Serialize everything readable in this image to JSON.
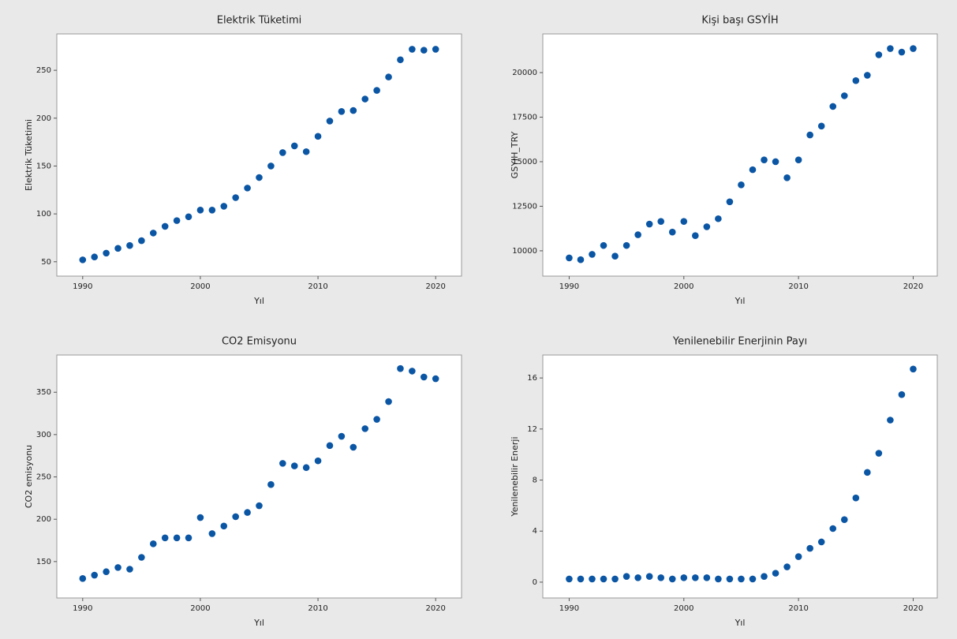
{
  "chart_data": [
    {
      "type": "scatter",
      "title": "Elektrik Tüketimi",
      "x_label": "Yıl",
      "y_label": "Elektrik Tüketimi",
      "color": "#0b56a4",
      "x": [
        1990,
        1991,
        1992,
        1993,
        1994,
        1995,
        1996,
        1997,
        1998,
        1999,
        2000,
        2001,
        2002,
        2003,
        2004,
        2005,
        2006,
        2007,
        2008,
        2009,
        2010,
        2011,
        2012,
        2013,
        2014,
        2015,
        2016,
        2017,
        2018,
        2019,
        2020
      ],
      "values": [
        52,
        55,
        59,
        64,
        67,
        72,
        80,
        87,
        93,
        97,
        104,
        104,
        108,
        117,
        127,
        138,
        150,
        164,
        171,
        165,
        181,
        197,
        207,
        208,
        220,
        229,
        243,
        261,
        272,
        271,
        272
      ],
      "xlim": [
        1987.8,
        2022.2
      ],
      "xticks": [
        1990,
        2000,
        2010,
        2020
      ],
      "ylim": [
        35,
        288
      ],
      "yticks": [
        50,
        100,
        150,
        200,
        250
      ]
    },
    {
      "type": "scatter",
      "title": "Kişi başı GSYİH",
      "x_label": "Yıl",
      "y_label": "GSYIH_TRY",
      "color": "#0b56a4",
      "x": [
        1990,
        1991,
        1992,
        1993,
        1994,
        1995,
        1996,
        1997,
        1998,
        1999,
        2000,
        2001,
        2002,
        2003,
        2004,
        2005,
        2006,
        2007,
        2008,
        2009,
        2010,
        2011,
        2012,
        2013,
        2014,
        2015,
        2016,
        2017,
        2018,
        2019,
        2020
      ],
      "values": [
        9600,
        9500,
        9800,
        10300,
        9700,
        10300,
        10900,
        11500,
        11650,
        11050,
        11650,
        10850,
        11350,
        11800,
        12750,
        13700,
        14550,
        15100,
        15000,
        14100,
        15100,
        16500,
        17000,
        18100,
        18700,
        19550,
        19850,
        21000,
        21350,
        21150,
        21350
      ],
      "xlim": [
        1987.7,
        2022.1
      ],
      "xticks": [
        1990,
        2000,
        2010,
        2020
      ],
      "ylim": [
        8580,
        22170
      ],
      "yticks": [
        10000,
        12500,
        15000,
        17500,
        20000
      ]
    },
    {
      "type": "scatter",
      "title": "CO2 Emisyonu",
      "x_label": "Yıl",
      "y_label": "CO2 emisyonu",
      "color": "#0b56a4",
      "x": [
        1990,
        1991,
        1992,
        1993,
        1994,
        1995,
        1996,
        1997,
        1998,
        1999,
        2000,
        2001,
        2002,
        2003,
        2004,
        2005,
        2006,
        2007,
        2008,
        2009,
        2010,
        2011,
        2012,
        2013,
        2014,
        2015,
        2016,
        2017,
        2018,
        2019,
        2020
      ],
      "values": [
        130,
        134,
        138,
        143,
        141,
        155,
        171,
        178,
        178,
        178,
        202,
        183,
        192,
        203,
        208,
        216,
        241,
        266,
        263,
        261,
        269,
        287,
        298,
        285,
        307,
        318,
        339,
        378,
        375,
        368,
        366
      ],
      "xlim": [
        1987.8,
        2022.2
      ],
      "xticks": [
        1990,
        2000,
        2010,
        2020
      ],
      "ylim": [
        107,
        394
      ],
      "yticks": [
        150,
        200,
        250,
        300,
        350
      ]
    },
    {
      "type": "scatter",
      "title": "Yenilenebilir Enerjinin Payı",
      "x_label": "Yıl",
      "y_label": "Yenilenebilir Enerji",
      "color": "#0b56a4",
      "x": [
        1990,
        1991,
        1992,
        1993,
        1994,
        1995,
        1996,
        1997,
        1998,
        1999,
        2000,
        2001,
        2002,
        2003,
        2004,
        2005,
        2006,
        2007,
        2008,
        2009,
        2010,
        2011,
        2012,
        2013,
        2014,
        2015,
        2016,
        2017,
        2018,
        2019,
        2020
      ],
      "values": [
        0.25,
        0.25,
        0.25,
        0.25,
        0.25,
        0.45,
        0.35,
        0.45,
        0.35,
        0.25,
        0.35,
        0.35,
        0.35,
        0.25,
        0.25,
        0.25,
        0.25,
        0.45,
        0.7,
        1.2,
        2.0,
        2.65,
        3.15,
        4.2,
        4.9,
        6.6,
        8.6,
        10.1,
        12.7,
        14.7,
        16.7
      ],
      "xlim": [
        1987.7,
        2022.1
      ],
      "xticks": [
        1990,
        2000,
        2010,
        2020
      ],
      "ylim": [
        -1.24,
        17.8
      ],
      "yticks": [
        0,
        4,
        8,
        12,
        16
      ]
    }
  ]
}
